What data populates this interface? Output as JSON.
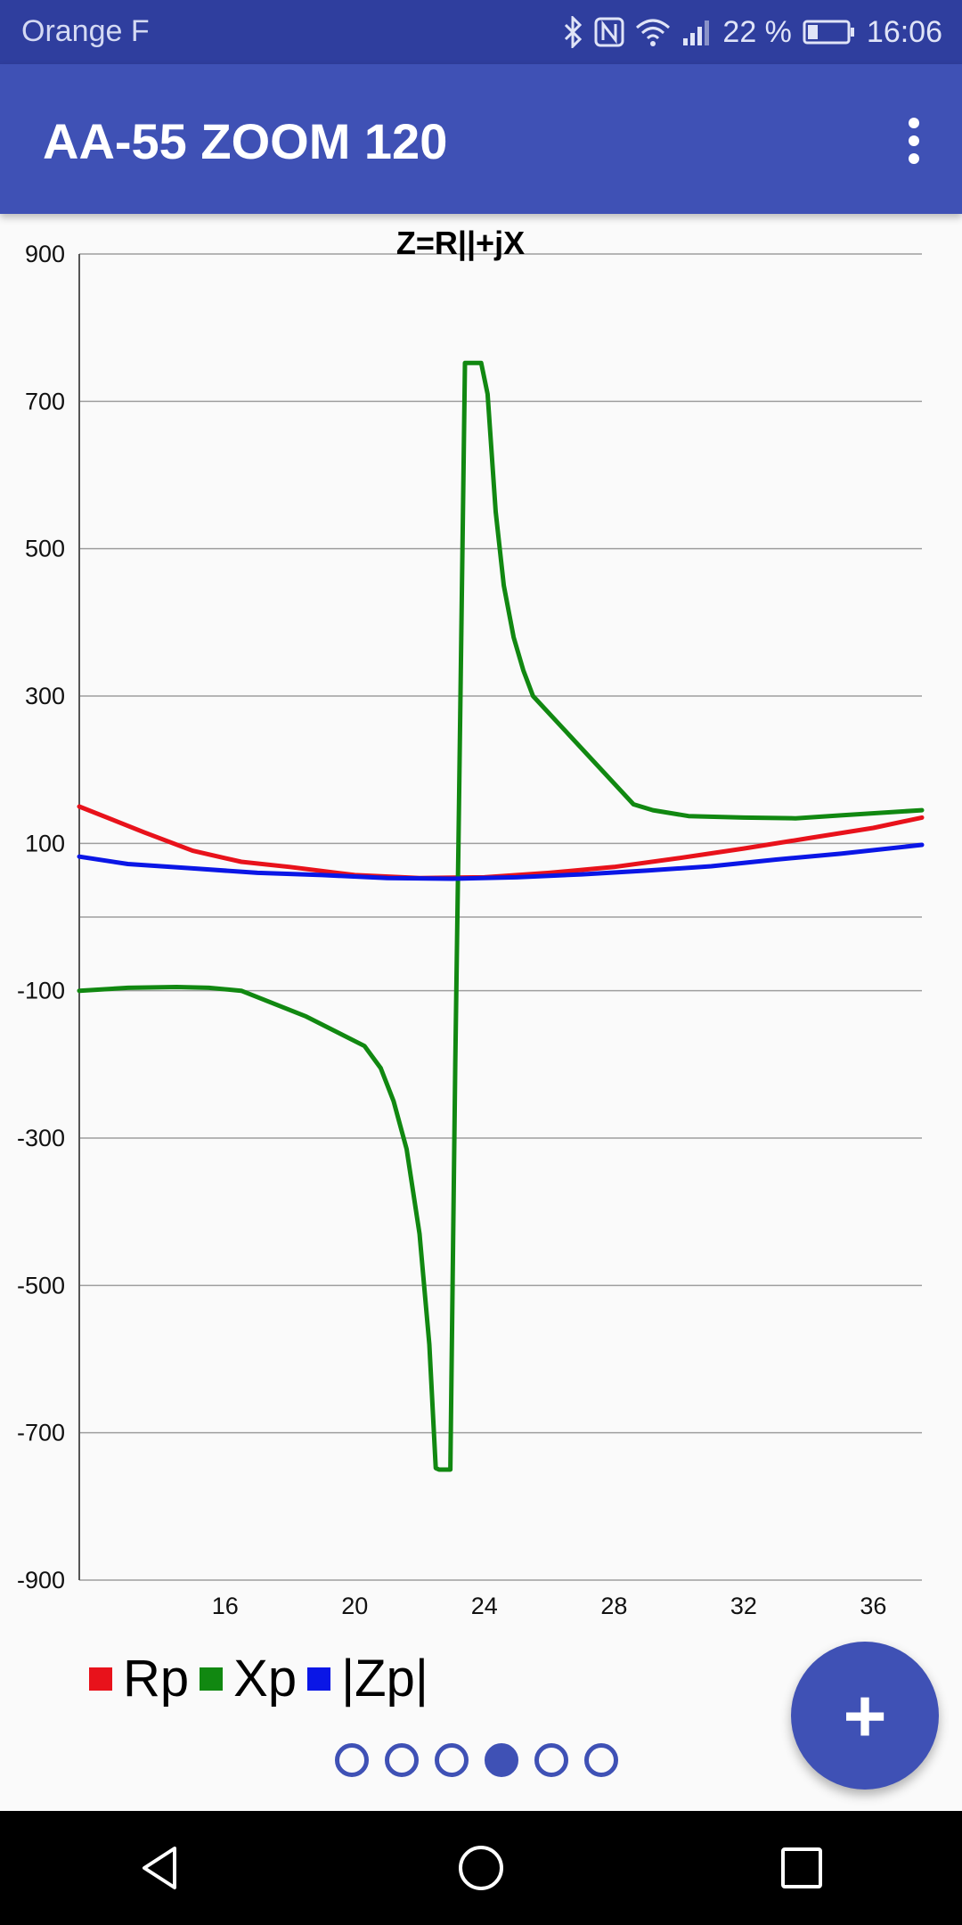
{
  "status_bar": {
    "carrier": "Orange F",
    "battery": "22 %",
    "time": "16:06"
  },
  "app_bar": {
    "title": "AA-55 ZOOM 120"
  },
  "chart_data": {
    "type": "line",
    "title": "Z=R||+jX",
    "xlim": [
      11.5,
      37.5
    ],
    "ylim": [
      -900,
      900
    ],
    "x_ticks": [
      16,
      20,
      24,
      28,
      32,
      36
    ],
    "y_ticks": [
      900,
      700,
      500,
      300,
      100,
      -100,
      -300,
      -500,
      -700,
      -900
    ],
    "y_gridlines": [
      900,
      700,
      500,
      300,
      100,
      0,
      -100,
      -300,
      -500,
      -700,
      -900
    ],
    "grid": true,
    "legend_position": "bottom-left",
    "series": [
      {
        "name": "Rp",
        "color": "#e8121b",
        "points": [
          [
            11.5,
            150
          ],
          [
            13.5,
            115
          ],
          [
            15,
            90
          ],
          [
            16.5,
            75
          ],
          [
            18,
            68
          ],
          [
            20,
            57
          ],
          [
            22,
            53
          ],
          [
            24,
            54
          ],
          [
            26,
            60
          ],
          [
            28,
            68
          ],
          [
            30,
            80
          ],
          [
            32,
            93
          ],
          [
            34,
            107
          ],
          [
            36,
            121
          ],
          [
            37.5,
            135
          ]
        ]
      },
      {
        "name": "Xp",
        "color": "#118811",
        "points": [
          [
            11.5,
            -100
          ],
          [
            13,
            -96
          ],
          [
            14.5,
            -95
          ],
          [
            15.5,
            -96
          ],
          [
            16.5,
            -100
          ],
          [
            18.5,
            -135
          ],
          [
            20.3,
            -175
          ],
          [
            20.8,
            -205
          ],
          [
            21.2,
            -250
          ],
          [
            21.6,
            -315
          ],
          [
            22,
            -430
          ],
          [
            22.3,
            -580
          ],
          [
            22.5,
            -748
          ],
          [
            22.6,
            -750
          ],
          [
            22.95,
            -750
          ],
          [
            23.1,
            -200
          ],
          [
            23.2,
            100
          ],
          [
            23.3,
            420
          ],
          [
            23.4,
            752
          ],
          [
            23.9,
            752
          ],
          [
            24.1,
            710
          ],
          [
            24.35,
            550
          ],
          [
            24.6,
            450
          ],
          [
            24.9,
            380
          ],
          [
            25.2,
            335
          ],
          [
            25.5,
            300
          ],
          [
            28.6,
            153
          ],
          [
            29.2,
            145
          ],
          [
            30.3,
            137
          ],
          [
            32,
            135
          ],
          [
            33.6,
            134
          ],
          [
            35,
            138
          ],
          [
            37.5,
            145
          ]
        ]
      },
      {
        "name": "|Zp|",
        "color": "#0a16e6",
        "points": [
          [
            11.5,
            82
          ],
          [
            13,
            72
          ],
          [
            15,
            66
          ],
          [
            17,
            60
          ],
          [
            19,
            57
          ],
          [
            21,
            53
          ],
          [
            23,
            52
          ],
          [
            25,
            54
          ],
          [
            27,
            58
          ],
          [
            29,
            63
          ],
          [
            31,
            69
          ],
          [
            33,
            78
          ],
          [
            35,
            86
          ],
          [
            37.5,
            98
          ]
        ]
      }
    ]
  },
  "legend": [
    {
      "label": "Rp",
      "color": "#e8121b"
    },
    {
      "label": "Xp",
      "color": "#118811"
    },
    {
      "label": "|Zp|",
      "color": "#0a16e6"
    }
  ],
  "pager": {
    "total": 6,
    "active_index": 3
  },
  "fab": {
    "label": "+"
  },
  "icons": {
    "status": [
      "bluetooth-icon",
      "nfc-icon",
      "wifi-icon",
      "signal-icon",
      "battery-icon"
    ],
    "nav": [
      "back-icon",
      "home-icon",
      "recents-icon"
    ]
  }
}
